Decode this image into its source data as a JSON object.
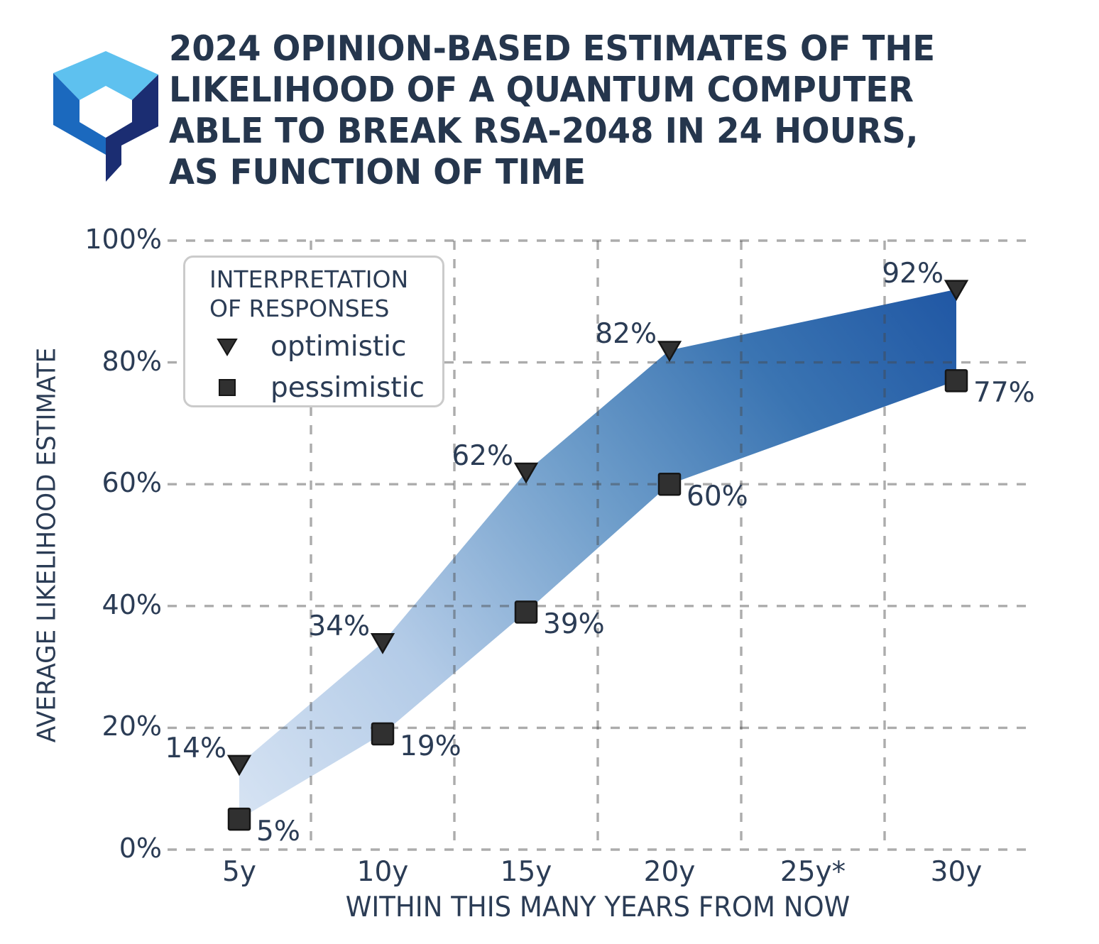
{
  "page": {
    "background": "#ffffff",
    "text_color": "#2b3c55"
  },
  "header": {
    "logo": "quantum-hexagon-q-logo",
    "logo_colors": {
      "light_blue": "#5ec1ef",
      "mid_blue": "#1b69be",
      "dark_navy": "#1b2d72"
    },
    "title_lines": [
      "2024 OPINION-BASED ESTIMATES OF THE",
      "LIKELIHOOD OF A QUANTUM COMPUTER",
      "ABLE TO BREAK RSA-2048 IN 24 HOURS,",
      "AS FUNCTION OF TIME"
    ]
  },
  "chart_data": {
    "type": "area",
    "subtype": "range-band-between-two-lines",
    "title": "2024 OPINION-BASED ESTIMATES OF THE LIKELIHOOD OF A QUANTUM COMPUTER ABLE TO BREAK RSA-2048 IN 24 HOURS, AS FUNCTION OF TIME",
    "categories": [
      "5y",
      "10y",
      "15y",
      "20y",
      "25y*",
      "30y"
    ],
    "series": [
      {
        "name": "optimistic",
        "marker": "triangle-down",
        "values": [
          14,
          34,
          62,
          82,
          null,
          92
        ]
      },
      {
        "name": "pessimistic",
        "marker": "square",
        "values": [
          5,
          19,
          39,
          60,
          null,
          77
        ]
      }
    ],
    "xlabel": "WITHIN THIS MANY YEARS FROM NOW",
    "ylabel": "AVERAGE LIKELIHOOD ESTIMATE",
    "ylim": [
      0,
      100
    ],
    "ytick_values": [
      0,
      20,
      40,
      60,
      80,
      100
    ],
    "ytick_labels": [
      "0%",
      "20%",
      "40%",
      "60%",
      "80%",
      "100%"
    ],
    "grid": "dashed, horizontal at y-ticks, vertical at category midpoints, drawn over band",
    "legend_position": "upper-left",
    "band_gradient": [
      "#d9e5f4",
      "#b3cbe7",
      "#6e9dca",
      "#3a74b2",
      "#2057a4"
    ],
    "marker_color": "#303030",
    "label_suffix": "%"
  },
  "legend": {
    "title_lines": [
      "INTERPRETATION",
      "OF RESPONSES"
    ],
    "items": [
      {
        "label": "optimistic",
        "marker": "triangle-down"
      },
      {
        "label": "pessimistic",
        "marker": "square"
      }
    ]
  }
}
